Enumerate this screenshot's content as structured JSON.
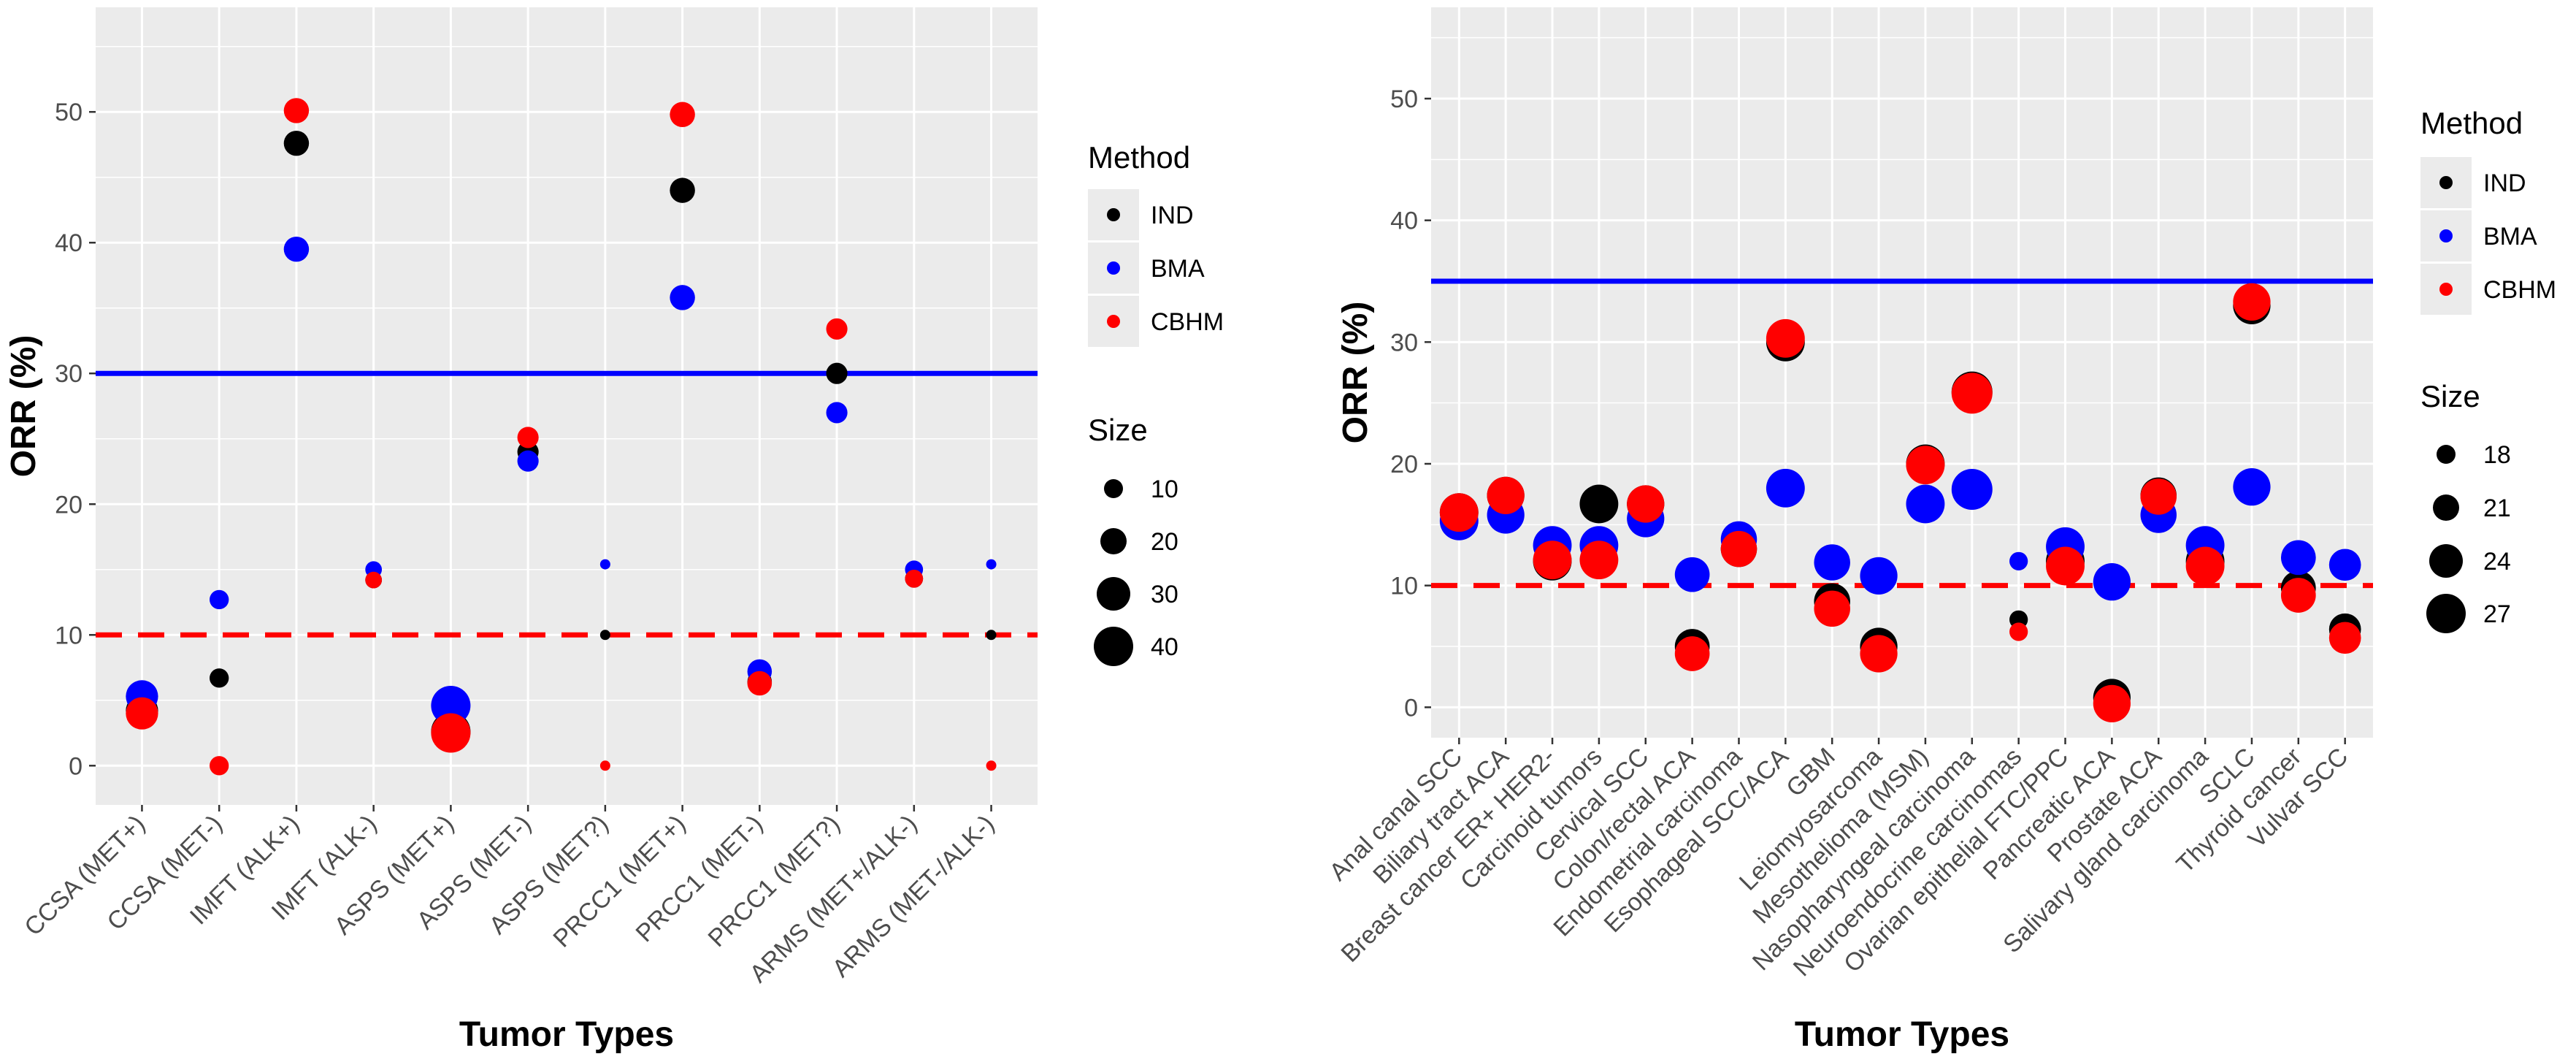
{
  "colors": {
    "IND": "#000000",
    "BMA": "#0000ff",
    "CBHM": "#ff0000",
    "panel_bg": "#ebebeb",
    "grid": "#ffffff",
    "text": "#4d4d4d"
  },
  "chart_data": [
    {
      "type": "scatter",
      "xlabel": "Tumor Types",
      "ylabel": "ORR (%)",
      "ylim": [
        -3,
        58
      ],
      "yticks": [
        0,
        10,
        20,
        30,
        40,
        50
      ],
      "categories": [
        "CCSA (MET+)",
        "CCSA (MET-)",
        "IMFT (ALK+)",
        "IMFT (ALK-)",
        "ASPS (MET+)",
        "ASPS (MET-)",
        "ASPS (MET?)",
        "PRCC1 (MET+)",
        "PRCC1 (MET-)",
        "PRCC1 (MET?)",
        "ARMS (MET+/ALK-)",
        "ARMS (MET-/ALK-)"
      ],
      "sizes": [
        25,
        5,
        12,
        3,
        43,
        7,
        1,
        12,
        11,
        7,
        4,
        1
      ],
      "series": [
        {
          "name": "IND",
          "values": [
            4.2,
            6.7,
            47.6,
            14.2,
            2.6,
            24.0,
            10.0,
            44.0,
            6.4,
            30.0,
            14.3,
            10.0
          ]
        },
        {
          "name": "BMA",
          "values": [
            5.3,
            12.7,
            39.5,
            15.0,
            4.6,
            23.3,
            15.4,
            35.8,
            7.2,
            27.0,
            15.0,
            15.4
          ]
        },
        {
          "name": "CBHM",
          "values": [
            4.0,
            0.0,
            50.1,
            14.2,
            2.5,
            25.1,
            0.0,
            49.8,
            6.3,
            33.4,
            14.3,
            0.0
          ]
        }
      ],
      "hlines": [
        {
          "y": 30,
          "style": "solid",
          "color": "#0000ff"
        },
        {
          "y": 10,
          "style": "dashed",
          "color": "#ff0000"
        }
      ],
      "legend": {
        "method_title": "Method",
        "methods": [
          "IND",
          "BMA",
          "CBHM"
        ],
        "size_title": "Size",
        "size_values": [
          10,
          20,
          30,
          40
        ]
      }
    },
    {
      "type": "scatter",
      "xlabel": "Tumor Types",
      "ylabel": "ORR (%)",
      "ylim": [
        -2.5,
        57.5
      ],
      "yticks": [
        0,
        10,
        20,
        30,
        40,
        50
      ],
      "categories": [
        "Anal canal SCC",
        "Biliary tract ACA",
        "Breast cancer ER+ HER2-",
        "Carcinoid tumors",
        "Cervical SCC",
        "Colon/rectal ACA",
        "Endometrial carcinoma",
        "Esophageal SCC/ACA",
        "GBM",
        "Leiomyosarcoma",
        "Mesothelioma (MSM)",
        "Nasopharyngeal carcinoma",
        "Neuroendocrine carcinomas",
        "Ovarian epithelial FTC/PPC",
        "Pancreatic ACA",
        "Prostate ACA",
        "Salivary gland carcinoma",
        "SCLC",
        "Thyroid cancer",
        "Vulvar SCC"
      ],
      "sizes": [
        25,
        24,
        25,
        25,
        24,
        22,
        23,
        25,
        23,
        24,
        25,
        27,
        14,
        25,
        24,
        23,
        25,
        24,
        22,
        20
      ],
      "series": [
        {
          "name": "IND",
          "values": [
            16.0,
            17.4,
            12.0,
            16.7,
            16.7,
            5.0,
            13.0,
            30.0,
            8.7,
            5.0,
            20.0,
            25.9,
            7.2,
            12.0,
            0.8,
            17.4,
            12.0,
            33.0,
            9.8,
            6.4
          ]
        },
        {
          "name": "BMA",
          "values": [
            15.3,
            15.8,
            13.3,
            13.3,
            15.5,
            10.9,
            13.8,
            18.0,
            11.9,
            10.8,
            16.7,
            17.9,
            12.0,
            13.2,
            10.3,
            15.8,
            13.3,
            18.1,
            12.3,
            11.7
          ]
        },
        {
          "name": "CBHM",
          "values": [
            16.0,
            17.4,
            12.1,
            12.1,
            16.7,
            4.4,
            13.0,
            30.3,
            8.1,
            4.4,
            19.9,
            25.8,
            6.2,
            11.6,
            0.3,
            17.3,
            11.6,
            33.3,
            9.2,
            5.7
          ]
        }
      ],
      "hlines": [
        {
          "y": 35,
          "style": "solid",
          "color": "#0000ff"
        },
        {
          "y": 10,
          "style": "dashed",
          "color": "#ff0000"
        }
      ],
      "legend": {
        "method_title": "Method",
        "methods": [
          "IND",
          "BMA",
          "CBHM"
        ],
        "size_title": "Size",
        "size_values": [
          18,
          21,
          24,
          27
        ]
      }
    }
  ]
}
